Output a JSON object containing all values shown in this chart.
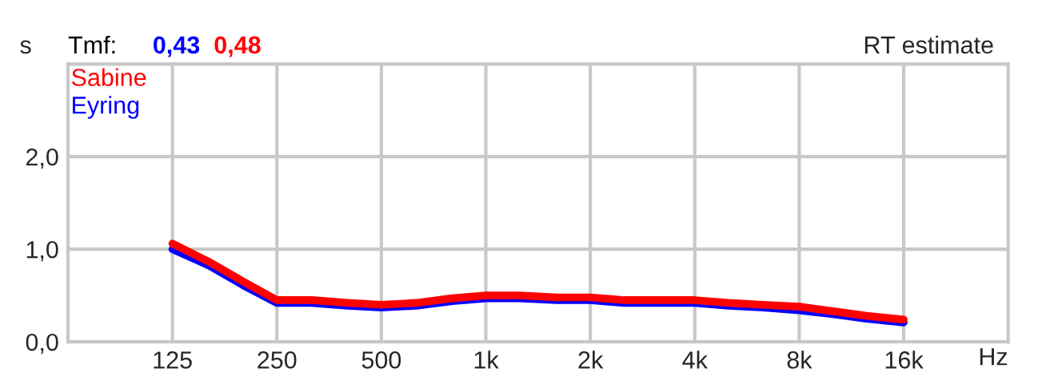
{
  "chart_data": {
    "type": "line",
    "title": "RT estimate",
    "ylabel": "s",
    "xlabel": "Hz",
    "annotations": [
      "Tmf:",
      "0,43",
      "0,48"
    ],
    "x": [
      125,
      160,
      200,
      250,
      315,
      400,
      500,
      630,
      800,
      1000,
      1250,
      1600,
      2000,
      2500,
      3150,
      4000,
      5000,
      6300,
      8000,
      10000,
      12500,
      16000
    ],
    "series": [
      {
        "name": "Sabine",
        "color": "#ff0000",
        "values": [
          1.06,
          0.86,
          0.65,
          0.45,
          0.45,
          0.42,
          0.4,
          0.42,
          0.47,
          0.5,
          0.5,
          0.48,
          0.48,
          0.45,
          0.45,
          0.45,
          0.42,
          0.4,
          0.38,
          0.33,
          0.28,
          0.24
        ]
      },
      {
        "name": "Eyring",
        "color": "#0000ff",
        "values": [
          1.0,
          0.82,
          0.61,
          0.42,
          0.42,
          0.39,
          0.37,
          0.39,
          0.44,
          0.47,
          0.47,
          0.45,
          0.45,
          0.42,
          0.42,
          0.42,
          0.39,
          0.37,
          0.34,
          0.3,
          0.25,
          0.21
        ]
      }
    ],
    "log": "x",
    "xlim": [
      62.5,
      32000
    ],
    "xticks": [
      125,
      250,
      500,
      {
        "value": 1000,
        "label": "1k"
      },
      {
        "value": 2000,
        "label": "2k"
      },
      {
        "value": 4000,
        "label": "4k"
      },
      {
        "value": 8000,
        "label": "8k"
      },
      {
        "value": 16000,
        "label": "16k"
      }
    ],
    "ylim": [
      0,
      3
    ],
    "yticks": [
      {
        "value": 0,
        "label": "0,0"
      },
      {
        "value": 1,
        "label": "1,0"
      },
      {
        "value": 2,
        "label": "2,0"
      },
      {
        "value": 3,
        "label": null
      }
    ],
    "grid": true,
    "legend": "top left",
    "marker": "none",
    "line_style": "solid"
  }
}
